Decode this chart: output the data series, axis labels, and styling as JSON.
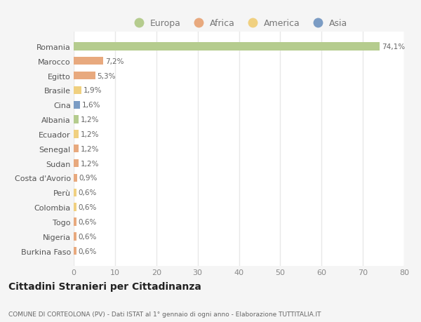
{
  "countries": [
    "Romania",
    "Marocco",
    "Egitto",
    "Brasile",
    "Cina",
    "Albania",
    "Ecuador",
    "Senegal",
    "Sudan",
    "Costa d'Avorio",
    "Perù",
    "Colombia",
    "Togo",
    "Nigeria",
    "Burkina Faso"
  ],
  "values": [
    74.1,
    7.2,
    5.3,
    1.9,
    1.6,
    1.2,
    1.2,
    1.2,
    1.2,
    0.9,
    0.6,
    0.6,
    0.6,
    0.6,
    0.6
  ],
  "labels": [
    "74,1%",
    "7,2%",
    "5,3%",
    "1,9%",
    "1,6%",
    "1,2%",
    "1,2%",
    "1,2%",
    "1,2%",
    "0,9%",
    "0,6%",
    "0,6%",
    "0,6%",
    "0,6%",
    "0,6%"
  ],
  "colors": [
    "#b5cc8e",
    "#e8a97e",
    "#e8a97e",
    "#f0d080",
    "#7b9cc4",
    "#b5cc8e",
    "#f0d080",
    "#e8a97e",
    "#e8a97e",
    "#e8a97e",
    "#f0d080",
    "#f0d080",
    "#e8a97e",
    "#e8a97e",
    "#e8a97e"
  ],
  "legend_labels": [
    "Europa",
    "Africa",
    "America",
    "Asia"
  ],
  "legend_colors": [
    "#b5cc8e",
    "#e8a97e",
    "#f0d080",
    "#7b9cc4"
  ],
  "title": "Cittadini Stranieri per Cittadinanza",
  "subtitle": "COMUNE DI CORTEOLONA (PV) - Dati ISTAT al 1° gennaio di ogni anno - Elaborazione TUTTITALIA.IT",
  "xlim": [
    0,
    80
  ],
  "xticks": [
    0,
    10,
    20,
    30,
    40,
    50,
    60,
    70,
    80
  ],
  "bg_color": "#f5f5f5",
  "bar_bg_color": "#ffffff",
  "grid_color": "#e8e8e8"
}
